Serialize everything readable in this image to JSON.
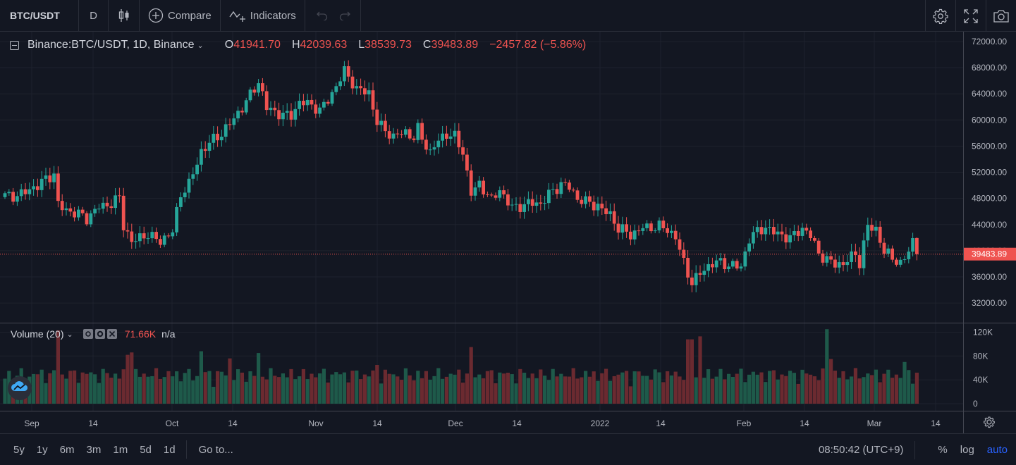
{
  "toolbar": {
    "symbol": "BTC/USDT",
    "interval": "D",
    "compare_label": "Compare",
    "indicators_label": "Indicators"
  },
  "main_pane": {
    "title": "Binance:BTC/USDT, 1D, Binance",
    "ohlc": [
      {
        "key": "O",
        "value": "41941.70"
      },
      {
        "key": "H",
        "value": "42039.63"
      },
      {
        "key": "L",
        "value": "38539.73"
      },
      {
        "key": "C",
        "value": "39483.89"
      }
    ],
    "change": "−2457.82 (−5.86%)",
    "last_price_label": "39483.89"
  },
  "volume_pane": {
    "title": "Volume (20)",
    "value": "71.66K",
    "na": "n/a"
  },
  "bottom_bar": {
    "ranges": [
      "5y",
      "1y",
      "6m",
      "3m",
      "1m",
      "5d",
      "1d"
    ],
    "goto_label": "Go to...",
    "clock": "08:50:42 (UTC+9)",
    "percent_label": "%",
    "log_label": "log",
    "auto_label": "auto"
  },
  "colors": {
    "up": "#26a69a",
    "down": "#ef5350",
    "volume_up": "#1e5a4a",
    "volume_down": "#6b2a30",
    "background": "#131722",
    "grid": "#1e222d",
    "accent": "#2962ff"
  },
  "icons": {
    "candles": "candlestick-icon",
    "compare": "plus-circle-icon",
    "indicators": "indicator-wave-icon",
    "undo": "undo-icon",
    "redo": "redo-icon",
    "settings": "gear-icon",
    "fullscreen": "fullscreen-icon",
    "snapshot": "camera-icon"
  },
  "chart_data": {
    "type": "candlestick",
    "interval": "1D",
    "price_axis": {
      "ticks": [
        "72000.00",
        "68000.00",
        "64000.00",
        "60000.00",
        "56000.00",
        "52000.00",
        "48000.00",
        "44000.00",
        "40000.00",
        "36000.00",
        "32000.00"
      ],
      "ylim": [
        29000,
        73500
      ]
    },
    "volume_axis": {
      "ticks": [
        "120K",
        "80K",
        "40K",
        "0"
      ],
      "ylim": [
        0,
        130
      ]
    },
    "time_axis": [
      "Sep",
      "14",
      "Oct",
      "14",
      "Nov",
      "14",
      "Dec",
      "14",
      "2022",
      "14",
      "Feb",
      "14",
      "Mar",
      "14"
    ],
    "anchors": [
      [
        0,
        48500
      ],
      [
        8,
        49500
      ],
      [
        12,
        52000
      ],
      [
        13,
        47500
      ],
      [
        15,
        46500
      ],
      [
        20,
        44500
      ],
      [
        23,
        47000
      ],
      [
        28,
        48000
      ],
      [
        29,
        43500
      ],
      [
        31,
        41000
      ],
      [
        35,
        43000
      ],
      [
        38,
        41500
      ],
      [
        41,
        42500
      ],
      [
        43,
        48500
      ],
      [
        45,
        50500
      ],
      [
        48,
        55500
      ],
      [
        53,
        57500
      ],
      [
        57,
        61500
      ],
      [
        62,
        65500
      ],
      [
        64,
        61500
      ],
      [
        70,
        61000
      ],
      [
        72,
        62500
      ],
      [
        77,
        61500
      ],
      [
        80,
        64500
      ],
      [
        83,
        67300
      ],
      [
        86,
        64300
      ],
      [
        89,
        64500
      ],
      [
        91,
        60000
      ],
      [
        95,
        57000
      ],
      [
        98,
        58000
      ],
      [
        100,
        57500
      ],
      [
        101,
        59000
      ],
      [
        104,
        55000
      ],
      [
        106,
        56500
      ],
      [
        108,
        57500
      ],
      [
        110,
        57500
      ],
      [
        112,
        55500
      ],
      [
        114,
        49000
      ],
      [
        116,
        50000
      ],
      [
        119,
        47300
      ],
      [
        121,
        49500
      ],
      [
        124,
        47000
      ],
      [
        127,
        46800
      ],
      [
        131,
        47000
      ],
      [
        133,
        49000
      ],
      [
        136,
        50500
      ],
      [
        138,
        49500
      ],
      [
        140,
        47500
      ],
      [
        145,
        47300
      ],
      [
        148,
        45500
      ],
      [
        150,
        43000
      ],
      [
        153,
        42300
      ],
      [
        156,
        44000
      ],
      [
        160,
        43500
      ],
      [
        164,
        42000
      ],
      [
        166,
        38500
      ],
      [
        168,
        35500
      ],
      [
        170,
        36500
      ],
      [
        174,
        38000
      ],
      [
        178,
        38200
      ],
      [
        180,
        37700
      ],
      [
        182,
        41600
      ],
      [
        186,
        43500
      ],
      [
        188,
        43200
      ],
      [
        190,
        42800
      ],
      [
        192,
        41800
      ],
      [
        195,
        43000
      ],
      [
        197,
        42200
      ],
      [
        199,
        40000
      ],
      [
        201,
        38900
      ],
      [
        203,
        38000
      ],
      [
        205,
        37500
      ],
      [
        208,
        39500
      ],
      [
        209,
        38300
      ],
      [
        211,
        44200
      ],
      [
        213,
        43500
      ],
      [
        215,
        39500
      ],
      [
        217,
        38600
      ],
      [
        219,
        37900
      ],
      [
        220,
        38900
      ],
      [
        222,
        41950
      ],
      [
        223,
        39484
      ]
    ],
    "volume_range": [
      8,
      75
    ],
    "volume_spikes": [
      [
        13,
        123
      ],
      [
        30,
        82
      ],
      [
        31,
        86
      ],
      [
        48,
        88
      ],
      [
        55,
        76
      ],
      [
        62,
        85
      ],
      [
        91,
        65
      ],
      [
        114,
        95
      ],
      [
        167,
        108
      ],
      [
        168,
        108
      ],
      [
        170,
        113
      ],
      [
        201,
        125
      ],
      [
        202,
        75
      ],
      [
        220,
        70
      ]
    ],
    "last": {
      "open": 41941.7,
      "high": 42039.63,
      "low": 38539.73,
      "close": 39483.89,
      "volume": "71.66K"
    }
  }
}
